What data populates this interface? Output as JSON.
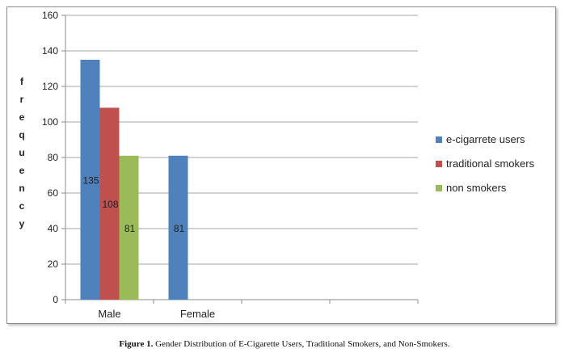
{
  "chart_data": {
    "type": "bar",
    "categories": [
      "Male",
      "Female"
    ],
    "series": [
      {
        "name": "e-cigarrete users",
        "color": "#4f81bd",
        "values": [
          135,
          81
        ]
      },
      {
        "name": "traditional smokers",
        "color": "#c0504d",
        "values": [
          108,
          null
        ]
      },
      {
        "name": "non smokers",
        "color": "#9bbb59",
        "values": [
          81,
          null
        ]
      }
    ],
    "data_labels": [
      [
        "135",
        "81"
      ],
      [
        "108",
        null
      ],
      [
        "81",
        null
      ]
    ],
    "ylabel": "frequency",
    "ylim": [
      0,
      160
    ],
    "yticks": [
      0,
      20,
      40,
      60,
      80,
      100,
      120,
      140,
      160
    ],
    "grid": true,
    "legend_position": "right"
  },
  "caption": {
    "label": "Figure 1.",
    "text": " Gender Distribution of E-Cigarette Users, Traditional Smokers, and Non-Smokers."
  }
}
